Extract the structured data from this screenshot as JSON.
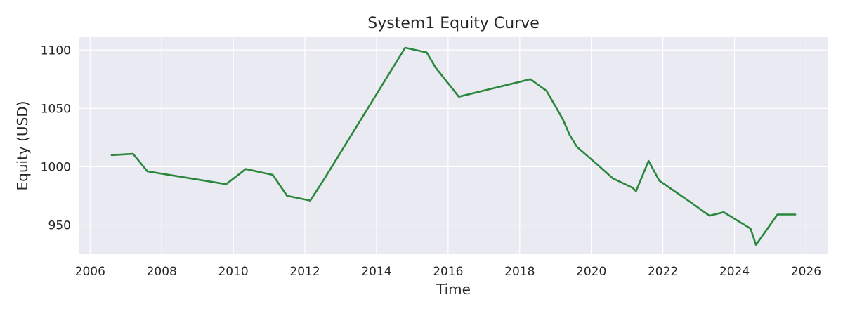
{
  "chart_data": {
    "type": "line",
    "title": "System1 Equity Curve",
    "xlabel": "Time",
    "ylabel": "Equity (USD)",
    "xlim": [
      2005.7,
      2026.6
    ],
    "ylim": [
      925,
      1111
    ],
    "x_ticks": [
      "2006",
      "2008",
      "2010",
      "2012",
      "2014",
      "2016",
      "2018",
      "2020",
      "2022",
      "2024",
      "2026"
    ],
    "y_ticks": [
      "950",
      "1000",
      "1050",
      "1100"
    ],
    "grid": true,
    "colors": {
      "line": "#2a873c",
      "plot_bg": "#eaeaf2",
      "grid": "#ffffff"
    },
    "series": [
      {
        "x": [
          2006.6,
          2007.2,
          2007.6,
          2009.8,
          2010.35,
          2011.1,
          2011.5,
          2012.15,
          2012.55,
          2014.8,
          2015.4,
          2015.65,
          2016.3,
          2018.3,
          2018.75,
          2019.2,
          2019.4,
          2019.6,
          2020.2,
          2020.6,
          2021.15,
          2021.25,
          2021.6,
          2021.9,
          2022.8,
          2023.3,
          2023.7,
          2024.45,
          2024.6,
          2025.2,
          2025.7
        ],
        "values": [
          1010,
          1011,
          996,
          985,
          998,
          993,
          975,
          971,
          990,
          1102,
          1098,
          1085,
          1060,
          1075,
          1065,
          1041,
          1027,
          1017,
          1001,
          990,
          982,
          979,
          1005,
          988,
          969,
          958,
          961,
          947,
          933,
          959,
          959
        ]
      }
    ]
  }
}
